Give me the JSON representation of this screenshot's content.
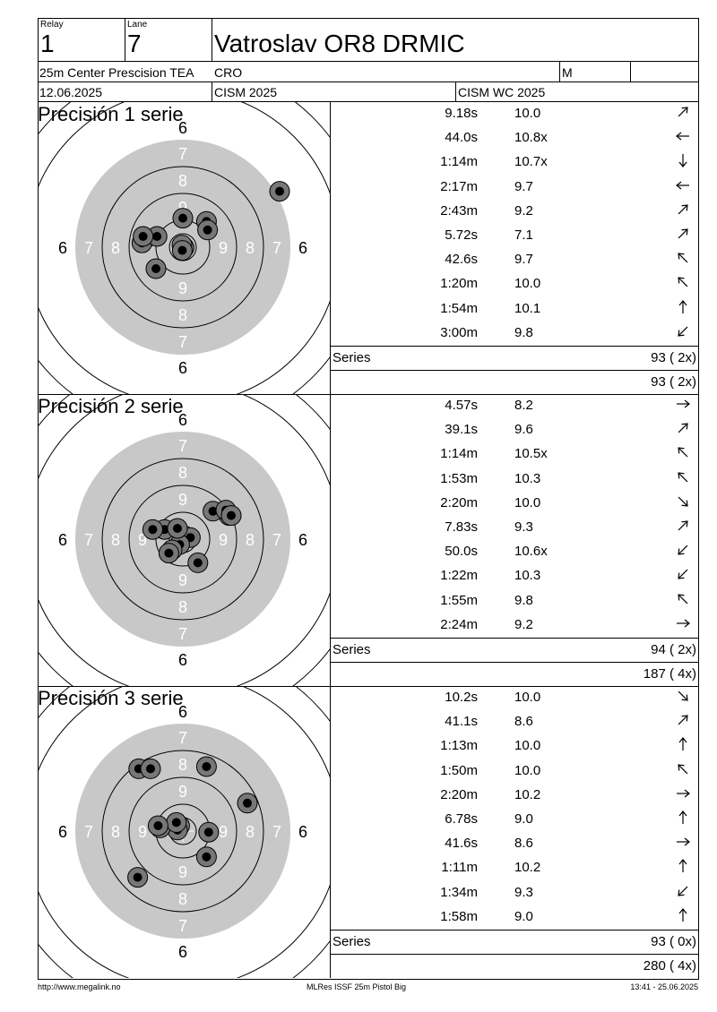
{
  "header": {
    "relay_label": "Relay",
    "relay_value": "1",
    "lane_label": "Lane",
    "lane_value": "7",
    "shooter_name": "Vatroslav OR8 DRMIC",
    "event": "25m Center Prescision TEA",
    "country": "CRO",
    "gender": "M",
    "date": "12.06.2025",
    "competition": "CISM 2025",
    "championship": "CISM WC 2025"
  },
  "target_ring_labels": [
    "6",
    "7",
    "8",
    "9"
  ],
  "series": [
    {
      "title": "Precisión 1 serie",
      "shots": [
        {
          "time": "9.18s",
          "score": "10.0",
          "dir": "up-right",
          "rdx": 0.012,
          "rdy": 0.004
        },
        {
          "time": "44.0s",
          "score": "10.8x",
          "dir": "left",
          "rdx": -0.008,
          "rdy": -0.02
        },
        {
          "time": "1:14m",
          "score": "10.7x",
          "dir": "down",
          "rdx": -0.005,
          "rdy": 0.03
        },
        {
          "time": "2:17m",
          "score": "9.7",
          "dir": "left",
          "rdx": -0.35,
          "rdy": -0.08
        },
        {
          "time": "2:43m",
          "score": "9.2",
          "dir": "up-right",
          "rdx": 0.22,
          "rdy": -0.24
        },
        {
          "time": "5.72s",
          "score": "7.1",
          "dir": "up-right",
          "rdx": 0.9,
          "rdy": -0.52
        },
        {
          "time": "42.6s",
          "score": "9.7",
          "dir": "up-left",
          "rdx": -0.38,
          "rdy": -0.04
        },
        {
          "time": "1:20m",
          "score": "10.0",
          "dir": "up-left",
          "rdx": -0.24,
          "rdy": -0.1
        },
        {
          "time": "1:54m",
          "score": "10.1",
          "dir": "up",
          "rdx": 0.0,
          "rdy": -0.27
        },
        {
          "time": "3:00m",
          "score": "9.8",
          "dir": "down-left",
          "rdx": -0.25,
          "rdy": 0.2
        },
        {
          "rdx": 0.23,
          "rdy": -0.16
        },
        {
          "rdx": -0.37,
          "rdy": -0.1
        }
      ],
      "series_label": "Series",
      "series_total": "93 ( 2x)",
      "running_total": "93 ( 2x)"
    },
    {
      "title": "Precisión 2 serie",
      "shots": [
        {
          "time": "4.57s",
          "score": "8.2",
          "dir": "right",
          "rdx": 0.07,
          "rdy": -0.015
        },
        {
          "time": "39.1s",
          "score": "9.6",
          "dir": "up-right",
          "rdx": -0.03,
          "rdy": 0.05
        },
        {
          "time": "1:14m",
          "score": "10.5x",
          "dir": "up-left",
          "rdx": -0.17,
          "rdy": -0.09
        },
        {
          "time": "1:53m",
          "score": "10.3",
          "dir": "up-left",
          "rdx": -0.05,
          "rdy": -0.1
        },
        {
          "time": "2:20m",
          "score": "10.0",
          "dir": "down-right",
          "rdx": -0.1,
          "rdy": 0.1
        },
        {
          "time": "7.83s",
          "score": "9.3",
          "dir": "up-right",
          "rdx": 0.28,
          "rdy": -0.26
        },
        {
          "time": "50.0s",
          "score": "10.6x",
          "dir": "down-left",
          "rdx": -0.13,
          "rdy": 0.13
        },
        {
          "time": "1:22m",
          "score": "10.3",
          "dir": "down-left",
          "rdx": -0.28,
          "rdy": -0.09
        },
        {
          "time": "1:55m",
          "score": "9.8",
          "dir": "up-left",
          "rdx": 0.43,
          "rdy": -0.22
        },
        {
          "time": "2:24m",
          "score": "9.2",
          "dir": "right",
          "rdx": 0.14,
          "rdy": 0.22
        },
        {
          "rdx": 0.4,
          "rdy": -0.27
        },
        {
          "rdx": 0.45,
          "rdy": -0.22
        }
      ],
      "series_label": "Series",
      "series_total": "94 ( 2x)",
      "running_total": "187 ( 4x)"
    },
    {
      "title": "Precisión 3 serie",
      "shots": [
        {
          "time": "10.2s",
          "score": "10.0",
          "dir": "down-right",
          "rdx": -0.03,
          "rdy": -0.05
        },
        {
          "time": "41.1s",
          "score": "8.6",
          "dir": "up-right",
          "rdx": 0.22,
          "rdy": -0.6
        },
        {
          "time": "1:13m",
          "score": "10.0",
          "dir": "up",
          "rdx": -0.05,
          "rdy": -0.01
        },
        {
          "time": "1:50m",
          "score": "10.0",
          "dir": "up-left",
          "rdx": 0.22,
          "rdy": 0.24
        },
        {
          "time": "2:20m",
          "score": "10.2",
          "dir": "right",
          "rdx": -0.21,
          "rdy": -0.03
        },
        {
          "time": "6.78s",
          "score": "9.0",
          "dir": "up",
          "rdx": 0.6,
          "rdy": -0.26
        },
        {
          "time": "41.6s",
          "score": "8.6",
          "dir": "right",
          "rdx": -0.41,
          "rdy": -0.58
        },
        {
          "time": "1:11m",
          "score": "10.2",
          "dir": "up",
          "rdx": -0.06,
          "rdy": -0.08
        },
        {
          "time": "1:34m",
          "score": "9.3",
          "dir": "down-left",
          "rdx": -0.42,
          "rdy": 0.43
        },
        {
          "time": "1:58m",
          "score": "9.0",
          "dir": "up",
          "rdx": 0.24,
          "rdy": 0.01
        },
        {
          "rdx": -0.3,
          "rdy": -0.58
        },
        {
          "rdx": -0.23,
          "rdy": -0.05
        }
      ],
      "series_label": "Series",
      "series_total": "93 ( 0x)",
      "running_total": "280 ( 4x)"
    }
  ],
  "footer": {
    "left": "http://www.megalink.no",
    "center": "MLRes ISSF 25m Pistol Big",
    "right": "13:41 - 25.06.2025"
  }
}
